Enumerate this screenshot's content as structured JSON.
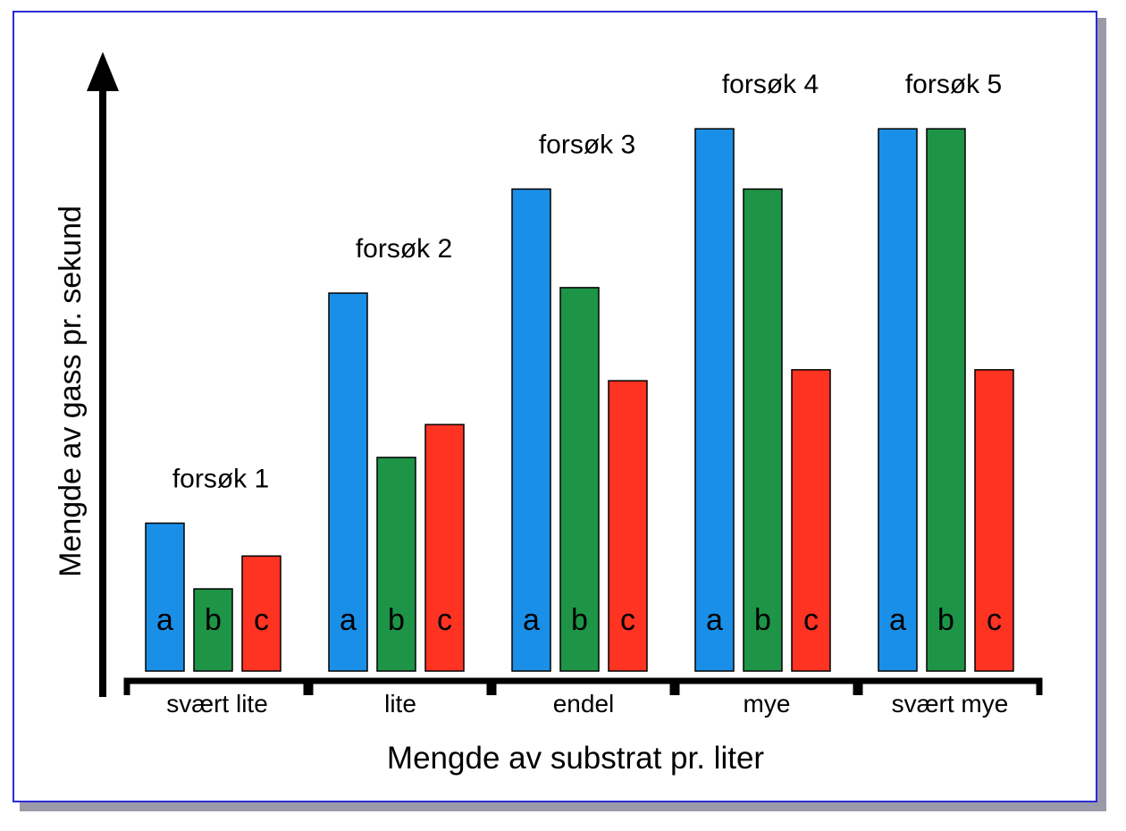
{
  "chart_data": {
    "type": "bar",
    "xlabel": "Mengde av substrat pr. liter",
    "ylabel": "Mengde av gass pr. sekund",
    "ylim": [
      0,
      100
    ],
    "grid": false,
    "categories": [
      "svært lite",
      "lite",
      "endel",
      "mye",
      "svært mye"
    ],
    "group_labels": [
      "forsøk 1",
      "forsøk 2",
      "forsøk 3",
      "forsøk 4",
      "forsøk 5"
    ],
    "series": [
      {
        "name": "a",
        "color": "#1a8fe8",
        "values": [
          27,
          69,
          88,
          99,
          99
        ]
      },
      {
        "name": "b",
        "color": "#1e9447",
        "values": [
          15,
          39,
          70,
          88,
          99
        ]
      },
      {
        "name": "c",
        "color": "#ff3322",
        "values": [
          21,
          45,
          53,
          55,
          55
        ]
      }
    ]
  }
}
